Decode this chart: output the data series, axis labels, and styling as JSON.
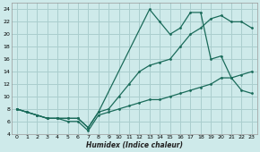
{
  "xlabel": "Humidex (Indice chaleur)",
  "bg_color": "#ceeaea",
  "grid_color": "#aacece",
  "line_color": "#1a6b5a",
  "xlim": [
    -0.5,
    23.5
  ],
  "ylim": [
    4,
    25
  ],
  "xticks": [
    0,
    1,
    2,
    3,
    4,
    5,
    6,
    7,
    8,
    9,
    10,
    11,
    12,
    13,
    14,
    15,
    16,
    17,
    18,
    19,
    20,
    21,
    22,
    23
  ],
  "yticks": [
    4,
    6,
    8,
    10,
    12,
    14,
    16,
    18,
    20,
    22,
    24
  ],
  "line1_x": [
    0,
    1,
    2,
    3,
    4,
    5,
    6,
    7,
    8,
    9,
    10,
    11,
    12,
    13,
    14,
    15,
    16,
    17,
    18,
    19,
    20,
    21,
    22,
    23
  ],
  "line1_y": [
    8,
    7.5,
    7,
    6.5,
    6.5,
    6.5,
    6.5,
    5,
    7.5,
    8,
    10,
    12,
    14,
    15,
    15.5,
    16,
    18,
    20,
    21,
    22.5,
    23,
    22,
    22,
    21
  ],
  "line2_x": [
    0,
    1,
    2,
    3,
    4,
    5,
    6,
    7,
    8,
    13,
    14,
    15,
    16,
    17,
    18,
    19,
    20,
    21,
    22,
    23
  ],
  "line2_y": [
    8,
    7.5,
    7,
    6.5,
    6.5,
    6.5,
    6.5,
    5,
    7.5,
    24,
    22,
    20,
    21,
    23.5,
    23.5,
    16,
    16.5,
    13,
    11,
    10.5
  ],
  "line3_x": [
    0,
    1,
    2,
    3,
    4,
    5,
    6,
    7,
    8,
    9,
    10,
    11,
    12,
    13,
    14,
    15,
    16,
    17,
    18,
    19,
    20,
    21,
    22,
    23
  ],
  "line3_y": [
    8,
    7.5,
    7,
    6.5,
    6.5,
    6,
    6,
    4.5,
    7,
    7.5,
    8,
    8.5,
    9,
    9.5,
    9.5,
    10,
    10.5,
    11,
    11.5,
    12,
    13,
    13,
    13.5,
    14
  ]
}
